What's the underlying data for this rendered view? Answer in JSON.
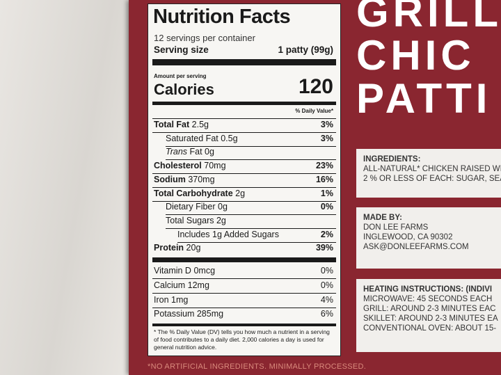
{
  "label": {
    "title": "Nutrition Facts",
    "servings": "12 servings per container",
    "serving_size_label": "Serving size",
    "serving_size": "1 patty (99g)",
    "amount_per_serving": "Amount per serving",
    "calories_label": "Calories",
    "calories": "120",
    "dv_header": "% Daily Value*",
    "rows": [
      {
        "name": "Total Fat",
        "amount": "2.5g",
        "dv": "3%",
        "bold": true,
        "indent": 0
      },
      {
        "name": "Saturated Fat",
        "amount": "0.5g",
        "dv": "3%",
        "bold": false,
        "indent": 1
      },
      {
        "name": "Trans",
        "amount": "Fat 0g",
        "italic": true,
        "bold": false,
        "indent": 1
      },
      {
        "name": "Cholesterol",
        "amount": "70mg",
        "dv": "23%",
        "bold": true,
        "indent": 0
      },
      {
        "name": "Sodium",
        "amount": "370mg",
        "dv": "16%",
        "bold": true,
        "indent": 0
      },
      {
        "name": "Total Carbohydrate",
        "amount": "2g",
        "dv": "1%",
        "bold": true,
        "indent": 0
      },
      {
        "name": "Dietary Fiber",
        "amount": "0g",
        "dv": "0%",
        "bold": false,
        "indent": 1
      },
      {
        "name": "Total Sugars",
        "amount": "2g",
        "bold": false,
        "indent": 1
      },
      {
        "name": "Includes 1g Added Sugars",
        "dv": "2%",
        "bold": false,
        "indent": 2
      },
      {
        "name": "Protein",
        "amount": "20g",
        "dv": "39%",
        "bold": true,
        "indent": 0
      }
    ],
    "vitamins": [
      {
        "name": "Vitamin D",
        "amount": "0mcg",
        "dv": "0%"
      },
      {
        "name": "Calcium",
        "amount": "12mg",
        "dv": "0%"
      },
      {
        "name": "Iron",
        "amount": "1mg",
        "dv": "4%"
      },
      {
        "name": "Potassium",
        "amount": "285mg",
        "dv": "6%"
      }
    ],
    "footnote": "* The % Daily Value (DV) tells you how much a nutrient in a serving of food contributes to a daily diet. 2,000 calories a day is used for general nutrition advice."
  },
  "package": {
    "title_lines": [
      "GRILL",
      "CHIC",
      "PATTI"
    ],
    "ingredients_title": "INGREDIENTS:",
    "ingredients_lines": [
      "ALL-NATURAL* CHICKEN RAISED WIT",
      "2 % OR LESS OF EACH: SUGAR, SEA"
    ],
    "made_by_title": "MADE BY:",
    "made_by_lines": [
      "DON LEE FARMS",
      "INGLEWOOD, CA 90302",
      "ASK@DONLEEFARMS.COM"
    ],
    "heating_title": "HEATING INSTRUCTIONS: (INDIVI",
    "heating_lines": [
      "MICROWAVE: 45 SECONDS EACH",
      "GRILL: AROUND 2-3 MINUTES EAC",
      "SKILLET: AROUND 2-3 MINUTES EA",
      "CONVENTIONAL OVEN: ABOUT 15-"
    ],
    "bottom": "*NO ARTIFICIAL INGREDIENTS. MINIMALLY PROCESSED."
  }
}
